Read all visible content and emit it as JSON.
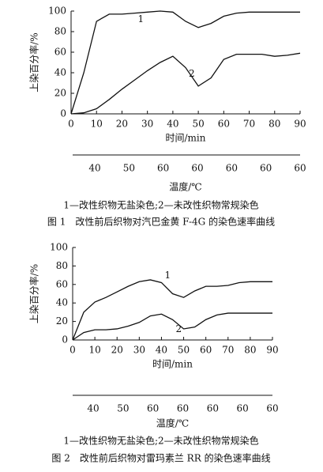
{
  "chart_data": [
    {
      "type": "line",
      "y_label": "上染百分率/%",
      "x_label": "时间/min",
      "x2_label": "温度/℃",
      "x": [
        0,
        5,
        10,
        15,
        20,
        25,
        30,
        35,
        40,
        45,
        50,
        55,
        60,
        65,
        70,
        75,
        80,
        85,
        90
      ],
      "xlim": [
        0,
        90
      ],
      "xticks": [
        0,
        10,
        20,
        30,
        40,
        50,
        60,
        70,
        80,
        90
      ],
      "ylim": [
        0,
        100
      ],
      "yticks": [
        0,
        20,
        40,
        60,
        80,
        100
      ],
      "x2_labels": [
        "40",
        "50",
        "60",
        "60",
        "60",
        "60",
        "60"
      ],
      "series": [
        {
          "name": "1",
          "color": "#111111",
          "values": [
            0,
            40,
            90,
            97,
            97,
            98,
            99,
            100,
            99,
            90,
            84,
            88,
            95,
            98,
            99,
            99,
            99,
            99,
            99
          ]
        },
        {
          "name": "2",
          "color": "#111111",
          "values": [
            0,
            1,
            5,
            14,
            24,
            33,
            42,
            50,
            56,
            45,
            27,
            35,
            53,
            58,
            58,
            58,
            56,
            57,
            59
          ]
        }
      ],
      "legend_text": "1—改性织物无盐染色;2—未改性织物常规染色",
      "caption": "图 1　改性前后织物对汽巴金黄 F-4G 的染色速率曲线"
    },
    {
      "type": "line",
      "y_label": "上染百分率/%",
      "x_label": "时间/min",
      "x2_label": "温度/℃",
      "x": [
        0,
        5,
        10,
        15,
        20,
        25,
        30,
        35,
        40,
        45,
        50,
        55,
        60,
        65,
        70,
        75,
        80,
        85,
        90
      ],
      "xlim": [
        0,
        90
      ],
      "xticks": [
        0,
        10,
        20,
        30,
        40,
        50,
        60,
        70,
        80,
        90
      ],
      "ylim": [
        0,
        100
      ],
      "yticks": [
        0,
        20,
        40,
        60,
        80,
        100
      ],
      "x2_labels": [
        "40",
        "50",
        "60",
        "60",
        "60",
        "60",
        "60"
      ],
      "series": [
        {
          "name": "1",
          "color": "#111111",
          "values": [
            0,
            30,
            41,
            46,
            52,
            58,
            63,
            65,
            62,
            50,
            46,
            53,
            58,
            58,
            59,
            62,
            63,
            63,
            63
          ]
        },
        {
          "name": "2",
          "color": "#111111",
          "values": [
            0,
            8,
            11,
            11,
            12,
            15,
            19,
            26,
            28,
            22,
            12,
            14,
            22,
            27,
            29,
            29,
            29,
            29,
            29
          ]
        }
      ],
      "legend_text": "1—改性织物无盐染色;2—未改性织物常规染色",
      "caption": "图 2　改性前后织物对雷玛素兰 RR 的染色速率曲线"
    }
  ]
}
